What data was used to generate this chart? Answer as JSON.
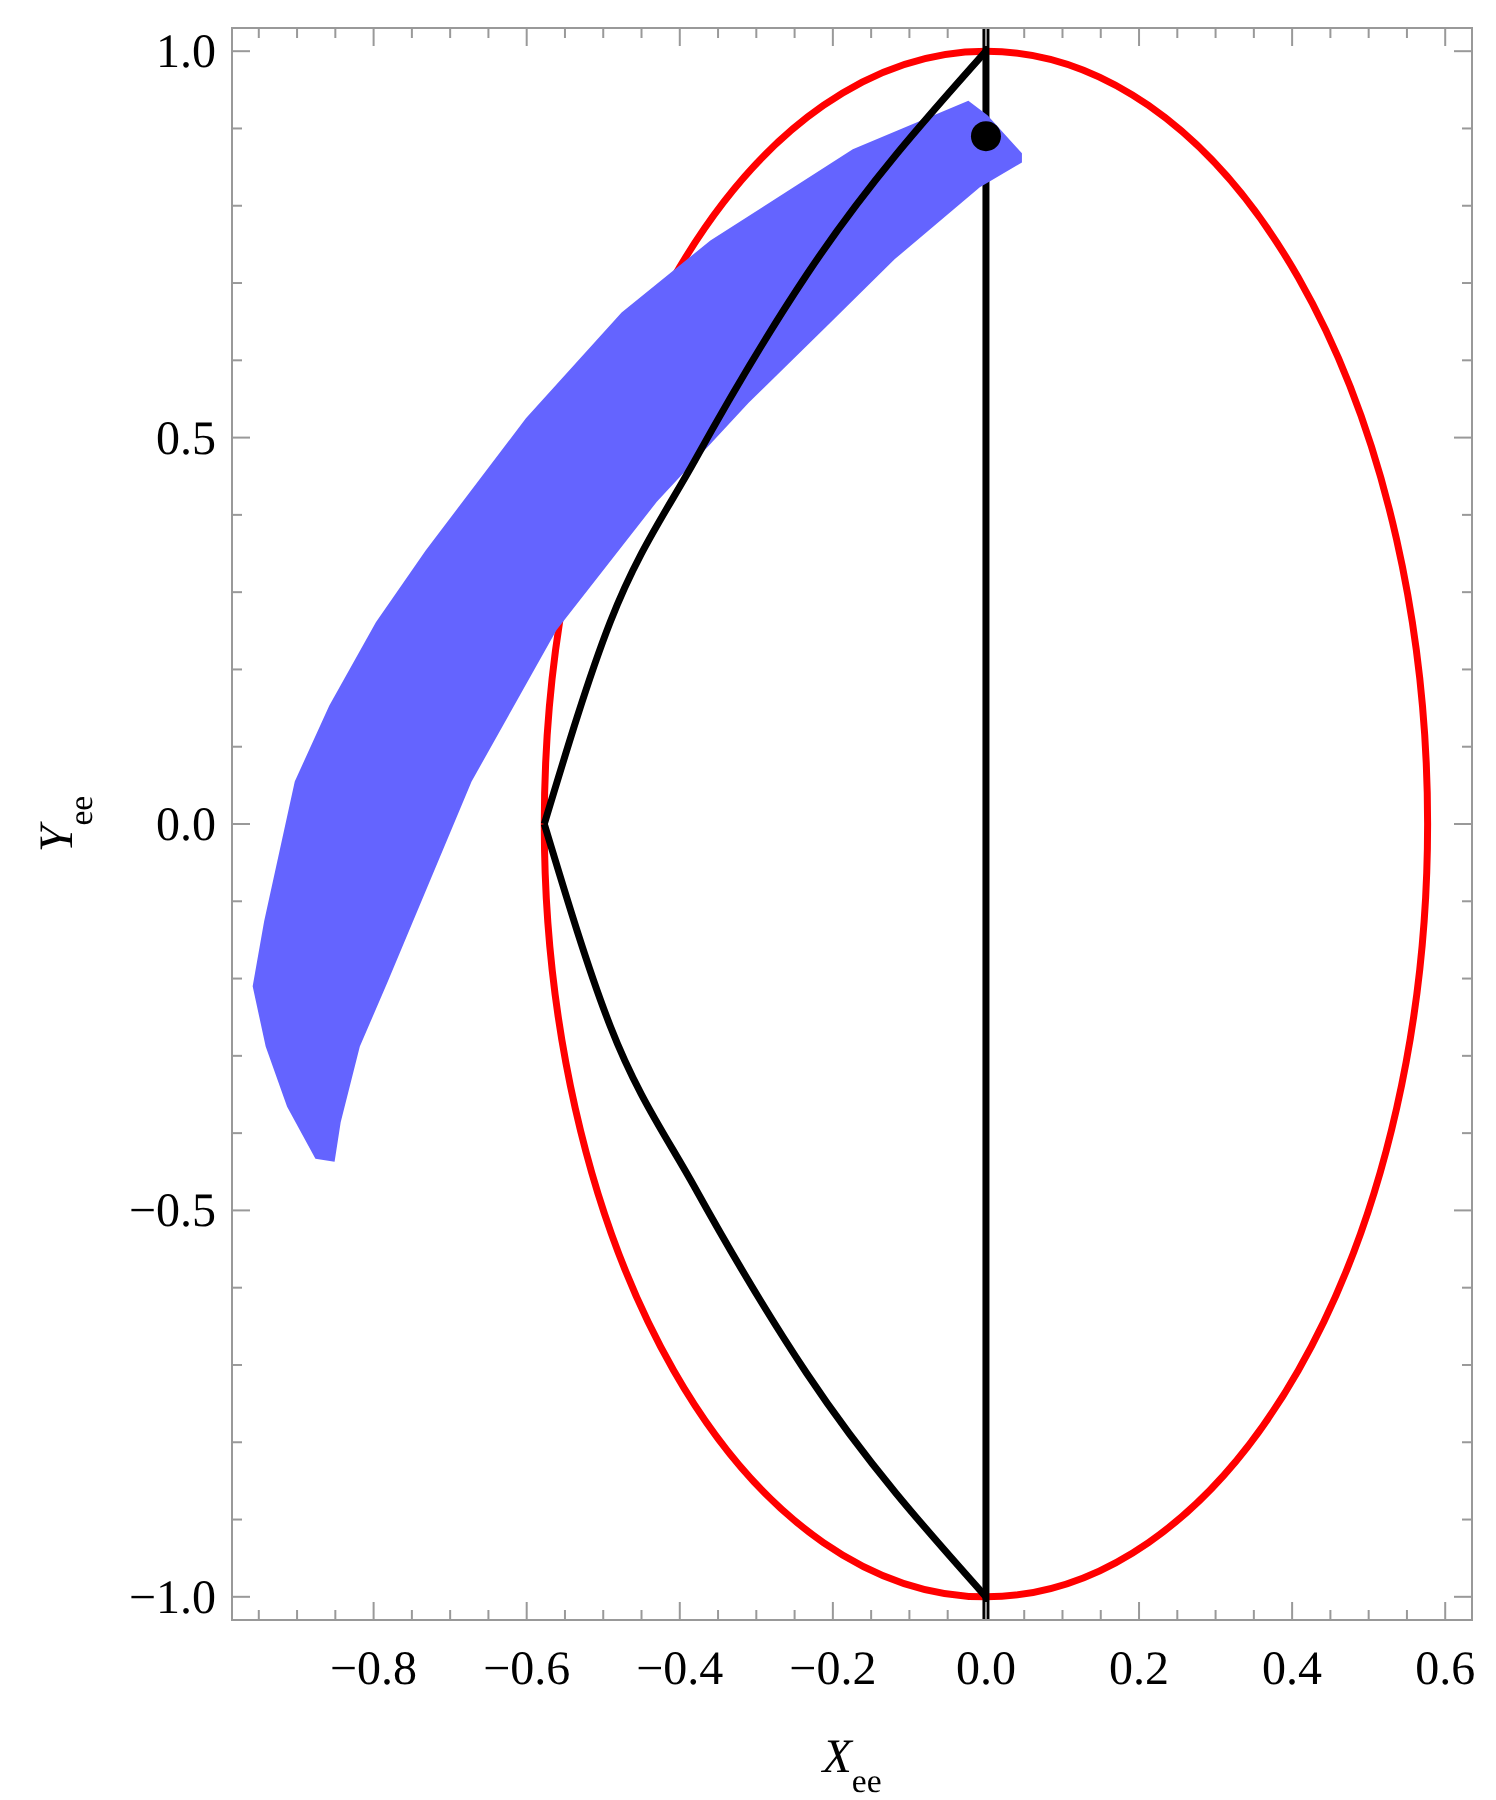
{
  "chart_data": {
    "type": "line",
    "xlabel": "X$_{ee}$",
    "ylabel": "Y$_{ee}$",
    "xlim": [
      -0.985,
      0.635
    ],
    "ylim": [
      -1.03,
      1.03
    ],
    "xticks": [
      {
        "value": -0.95,
        "label": null
      },
      {
        "value": -0.9,
        "label": null
      },
      {
        "value": -0.85,
        "label": null
      },
      {
        "value": -0.8,
        "label": "−0.8"
      },
      {
        "value": -0.75,
        "label": null
      },
      {
        "value": -0.7,
        "label": null
      },
      {
        "value": -0.65,
        "label": null
      },
      {
        "value": -0.6,
        "label": "−0.6"
      },
      {
        "value": -0.55,
        "label": null
      },
      {
        "value": -0.5,
        "label": null
      },
      {
        "value": -0.45,
        "label": null
      },
      {
        "value": -0.4,
        "label": "−0.4"
      },
      {
        "value": -0.35,
        "label": null
      },
      {
        "value": -0.3,
        "label": null
      },
      {
        "value": -0.25,
        "label": null
      },
      {
        "value": -0.2,
        "label": "−0.2"
      },
      {
        "value": -0.15,
        "label": null
      },
      {
        "value": -0.1,
        "label": null
      },
      {
        "value": -0.05,
        "label": null
      },
      {
        "value": 0,
        "label": "0.0"
      },
      {
        "value": 0.05,
        "label": null
      },
      {
        "value": 0.1,
        "label": null
      },
      {
        "value": 0.15,
        "label": null
      },
      {
        "value": 0.2,
        "label": "0.2"
      },
      {
        "value": 0.25,
        "label": null
      },
      {
        "value": 0.3,
        "label": null
      },
      {
        "value": 0.35,
        "label": null
      },
      {
        "value": 0.4,
        "label": "0.4"
      },
      {
        "value": 0.45,
        "label": null
      },
      {
        "value": 0.5,
        "label": null
      },
      {
        "value": 0.55,
        "label": null
      },
      {
        "value": 0.6,
        "label": "0.6"
      }
    ],
    "yticks": [
      {
        "value": -1,
        "label": "−1.0"
      },
      {
        "value": -0.9,
        "label": null
      },
      {
        "value": -0.8,
        "label": null
      },
      {
        "value": -0.7,
        "label": null
      },
      {
        "value": -0.6,
        "label": null
      },
      {
        "value": -0.5,
        "label": "−0.5"
      },
      {
        "value": -0.4,
        "label": null
      },
      {
        "value": -0.3,
        "label": null
      },
      {
        "value": -0.2,
        "label": null
      },
      {
        "value": -0.1,
        "label": null
      },
      {
        "value": 0,
        "label": "0.0"
      },
      {
        "value": 0.1,
        "label": null
      },
      {
        "value": 0.2,
        "label": null
      },
      {
        "value": 0.3,
        "label": null
      },
      {
        "value": 0.4,
        "label": null
      },
      {
        "value": 0.5,
        "label": "0.5"
      },
      {
        "value": 0.6,
        "label": null
      },
      {
        "value": 0.7,
        "label": null
      },
      {
        "value": 0.8,
        "label": null
      },
      {
        "value": 0.9,
        "label": null
      },
      {
        "value": 1,
        "label": "1.0"
      }
    ],
    "ref_lines": [
      {
        "axis": "x",
        "value": 0,
        "color": "#000000"
      }
    ],
    "series": [
      {
        "type": "area",
        "color": "#6464ff",
        "x": [
          -0.958,
          -0.943,
          -0.903,
          -0.858,
          -0.797,
          -0.732,
          -0.601,
          -0.476,
          -0.36,
          -0.174,
          -0.023,
          0.002,
          0.047,
          0.047,
          -0.008,
          -0.119,
          -0.209,
          -0.31,
          -0.43,
          -0.561,
          -0.672,
          -0.782,
          -0.818,
          -0.843,
          -0.851,
          -0.876,
          -0.913,
          -0.941
        ],
        "values": [
          -0.21,
          -0.126,
          0.055,
          0.153,
          0.261,
          0.354,
          0.525,
          0.662,
          0.755,
          0.873,
          0.936,
          0.917,
          0.868,
          0.856,
          0.824,
          0.731,
          0.643,
          0.545,
          0.417,
          0.251,
          0.055,
          -0.205,
          -0.288,
          -0.386,
          -0.437,
          -0.433,
          -0.366,
          -0.288
        ]
      },
      {
        "type": "line",
        "color": "#000000",
        "x": [
          -0.577,
          -0.491,
          -0.38,
          -0.234,
          0
        ],
        "values": [
          0,
          0.261,
          0.471,
          0.711,
          1
        ]
      },
      {
        "type": "line",
        "color": "#000000",
        "x": [
          -0.577,
          -0.491,
          -0.38,
          -0.234,
          0
        ],
        "values": [
          0,
          -0.261,
          -0.471,
          -0.711,
          -1
        ]
      },
      {
        "type": "scatter",
        "color": "#000000",
        "marker": "circle",
        "x": [
          0
        ],
        "values": [
          0.89
        ]
      }
    ]
  }
}
